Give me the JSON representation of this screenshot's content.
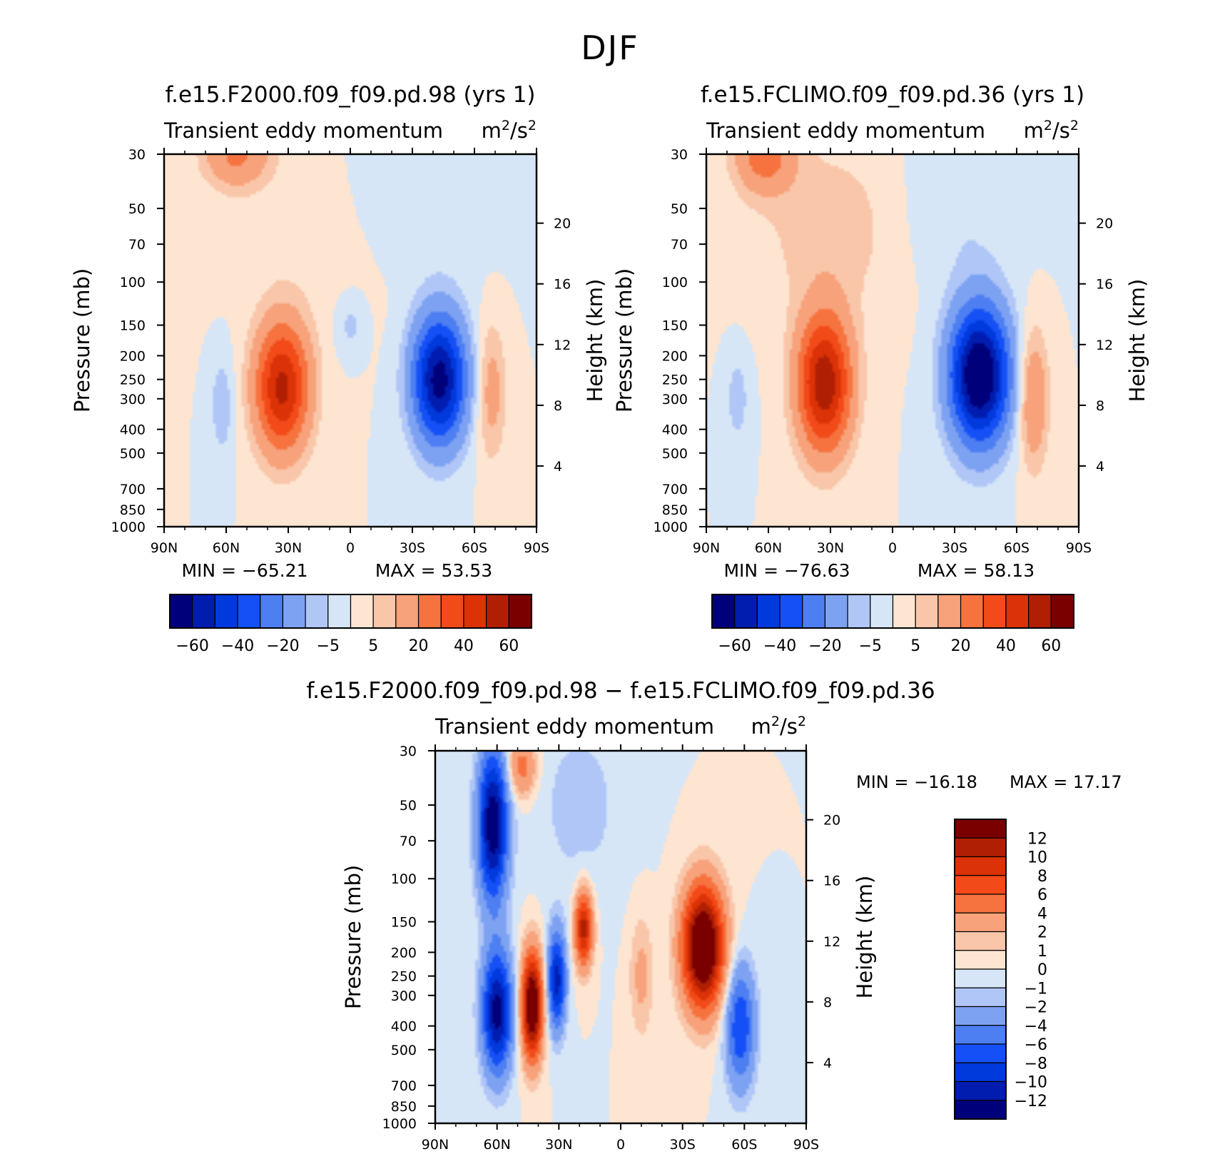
{
  "page": {
    "title": "DJF"
  },
  "chart_data": [
    {
      "type": "heatmap",
      "id": "left",
      "title": "f.e15.F2000.f09_f09.pd.98 (yrs 1)",
      "variable": "Transient eddy momentum",
      "units_base": "m",
      "units_mid": "/s",
      "units_exp": "2",
      "xlabel": "",
      "ylabel": "Pressure (mb)",
      "ylabel_right": "Height (km)",
      "x_ticks": [
        "90N",
        "60N",
        "30N",
        "0",
        "30S",
        "60S",
        "90S"
      ],
      "y_ticks": [
        "30",
        "50",
        "70",
        "100",
        "150",
        "200",
        "250",
        "300",
        "400",
        "500",
        "700",
        "850",
        "1000"
      ],
      "height_ticks": [
        "20",
        "16",
        "12",
        "8",
        "4"
      ],
      "min_label": "MIN = −65.21",
      "max_label": "MAX =  53.53",
      "colorbar_labels": [
        "−60",
        "−40",
        "−20",
        "−5",
        "5",
        "20",
        "40",
        "60"
      ],
      "levels": [
        -60,
        -50,
        -40,
        -30,
        -20,
        -10,
        -5,
        0,
        5,
        10,
        20,
        30,
        40,
        50,
        60
      ],
      "features": [
        {
          "lat": 33,
          "p": 270,
          "amp": 53,
          "wlat": 9,
          "wlog": 0.42
        },
        {
          "lat": -43,
          "p": 250,
          "amp": -65,
          "wlat": 9,
          "wlog": 0.42
        },
        {
          "lat": 55,
          "p": 30,
          "amp": 22,
          "wlat": 11,
          "wlog": 0.22
        },
        {
          "lat": -68,
          "p": 280,
          "amp": 14,
          "wlat": 5,
          "wlog": 0.45
        },
        {
          "lat": 62,
          "p": 320,
          "amp": -9,
          "wlat": 4,
          "wlog": 0.35
        },
        {
          "lat": 0,
          "p": 150,
          "amp": -7,
          "wlat": 5,
          "wlog": 0.2
        },
        {
          "lat": -30,
          "p": 50,
          "amp": -4,
          "wlat": 25,
          "wlog": 0.5
        },
        {
          "lat": 15,
          "p": 70,
          "amp": 3,
          "wlat": 30,
          "wlog": 0.6
        }
      ]
    },
    {
      "type": "heatmap",
      "id": "right",
      "title": "f.e15.FCLIMO.f09_f09.pd.36 (yrs 1)",
      "variable": "Transient eddy momentum",
      "units_base": "m",
      "units_mid": "/s",
      "units_exp": "2",
      "xlabel": "",
      "ylabel": "Pressure (mb)",
      "ylabel_right": "Height (km)",
      "x_ticks": [
        "90N",
        "60N",
        "30N",
        "0",
        "30S",
        "60S",
        "90S"
      ],
      "y_ticks": [
        "30",
        "50",
        "70",
        "100",
        "150",
        "200",
        "250",
        "300",
        "400",
        "500",
        "700",
        "850",
        "1000"
      ],
      "height_ticks": [
        "20",
        "16",
        "12",
        "8",
        "4"
      ],
      "min_label": "MIN = −76.63",
      "max_label": "MAX =  58.13",
      "colorbar_labels": [
        "−60",
        "−40",
        "−20",
        "−5",
        "5",
        "20",
        "40",
        "60"
      ],
      "levels": [
        -60,
        -50,
        -40,
        -30,
        -20,
        -10,
        -5,
        0,
        5,
        10,
        20,
        30,
        40,
        50,
        60
      ],
      "features": [
        {
          "lat": 33,
          "p": 260,
          "amp": 58,
          "wlat": 9,
          "wlog": 0.45
        },
        {
          "lat": -42,
          "p": 240,
          "amp": -76,
          "wlat": 10,
          "wlog": 0.45
        },
        {
          "lat": 62,
          "p": 30,
          "amp": 25,
          "wlat": 10,
          "wlog": 0.25
        },
        {
          "lat": -68,
          "p": 300,
          "amp": 20,
          "wlat": 5,
          "wlog": 0.45
        },
        {
          "lat": 75,
          "p": 300,
          "amp": -8,
          "wlat": 4,
          "wlog": 0.3
        },
        {
          "lat": -30,
          "p": 50,
          "amp": -5,
          "wlat": 20,
          "wlog": 0.5
        },
        {
          "lat": 30,
          "p": 60,
          "amp": 8,
          "wlat": 25,
          "wlog": 0.6
        }
      ]
    },
    {
      "type": "heatmap",
      "id": "bottom",
      "title": "f.e15.F2000.f09_f09.pd.98 − f.e15.FCLIMO.f09_f09.pd.36",
      "variable": "Transient eddy momentum",
      "units_base": "m",
      "units_mid": "/s",
      "units_exp": "2",
      "xlabel": "",
      "ylabel": "Pressure (mb)",
      "ylabel_right": "Height (km)",
      "x_ticks": [
        "90N",
        "60N",
        "30N",
        "0",
        "30S",
        "60S",
        "90S"
      ],
      "y_ticks": [
        "30",
        "50",
        "70",
        "100",
        "150",
        "200",
        "250",
        "300",
        "400",
        "500",
        "700",
        "850",
        "1000"
      ],
      "height_ticks": [
        "20",
        "16",
        "12",
        "8",
        "4"
      ],
      "min_label": "MIN = −16.18",
      "max_label": "MAX =  17.17",
      "colorbar_labels": [
        "12",
        "10",
        "8",
        "6",
        "4",
        "2",
        "1",
        "0",
        "−1",
        "−2",
        "−4",
        "−6",
        "−8",
        "−10",
        "−12"
      ],
      "levels": [
        -12,
        -10,
        -8,
        -6,
        -4,
        -2,
        -1,
        0,
        1,
        2,
        4,
        6,
        8,
        10,
        12
      ],
      "features": [
        {
          "lat": 62,
          "p": 60,
          "amp": -14,
          "wlat": 5,
          "wlog": 0.5
        },
        {
          "lat": 60,
          "p": 350,
          "amp": -13,
          "wlat": 5,
          "wlog": 0.4
        },
        {
          "lat": 43,
          "p": 330,
          "amp": 16,
          "wlat": 3.5,
          "wlog": 0.35
        },
        {
          "lat": 31,
          "p": 260,
          "amp": -11,
          "wlat": 3,
          "wlog": 0.32
        },
        {
          "lat": 18,
          "p": 160,
          "amp": 11,
          "wlat": 3,
          "wlog": 0.25
        },
        {
          "lat": -40,
          "p": 190,
          "amp": 17,
          "wlat": 7,
          "wlog": 0.4
        },
        {
          "lat": -58,
          "p": 400,
          "amp": -8,
          "wlat": 5,
          "wlog": 0.4
        },
        {
          "lat": 48,
          "p": 35,
          "amp": 5,
          "wlat": 5,
          "wlog": 0.2
        },
        {
          "lat": -10,
          "p": 250,
          "amp": 2.5,
          "wlat": 4,
          "wlog": 0.4
        },
        {
          "lat": 20,
          "p": 50,
          "amp": -1.5,
          "wlat": 15,
          "wlog": 0.6
        }
      ]
    }
  ],
  "colors": {
    "left_right_fill": [
      "#00007a",
      "#001db0",
      "#0039dc",
      "#1450f5",
      "#4d7ef2",
      "#7ea2f2",
      "#b0c6f7",
      "#d6e6f7",
      "#fde5d2",
      "#f9c6a9",
      "#f7a27b",
      "#f6733f",
      "#f24a18",
      "#db3207",
      "#b01f04",
      "#7a0000"
    ],
    "diff_fill": [
      "#00007a",
      "#001db0",
      "#0039dc",
      "#1450f5",
      "#4d7ef2",
      "#7ea2f2",
      "#b0c6f7",
      "#d6e6f7",
      "#fde5d2",
      "#f9c6a9",
      "#f7a27b",
      "#f6733f",
      "#f24a18",
      "#db3207",
      "#b01f04",
      "#7a0000"
    ]
  }
}
